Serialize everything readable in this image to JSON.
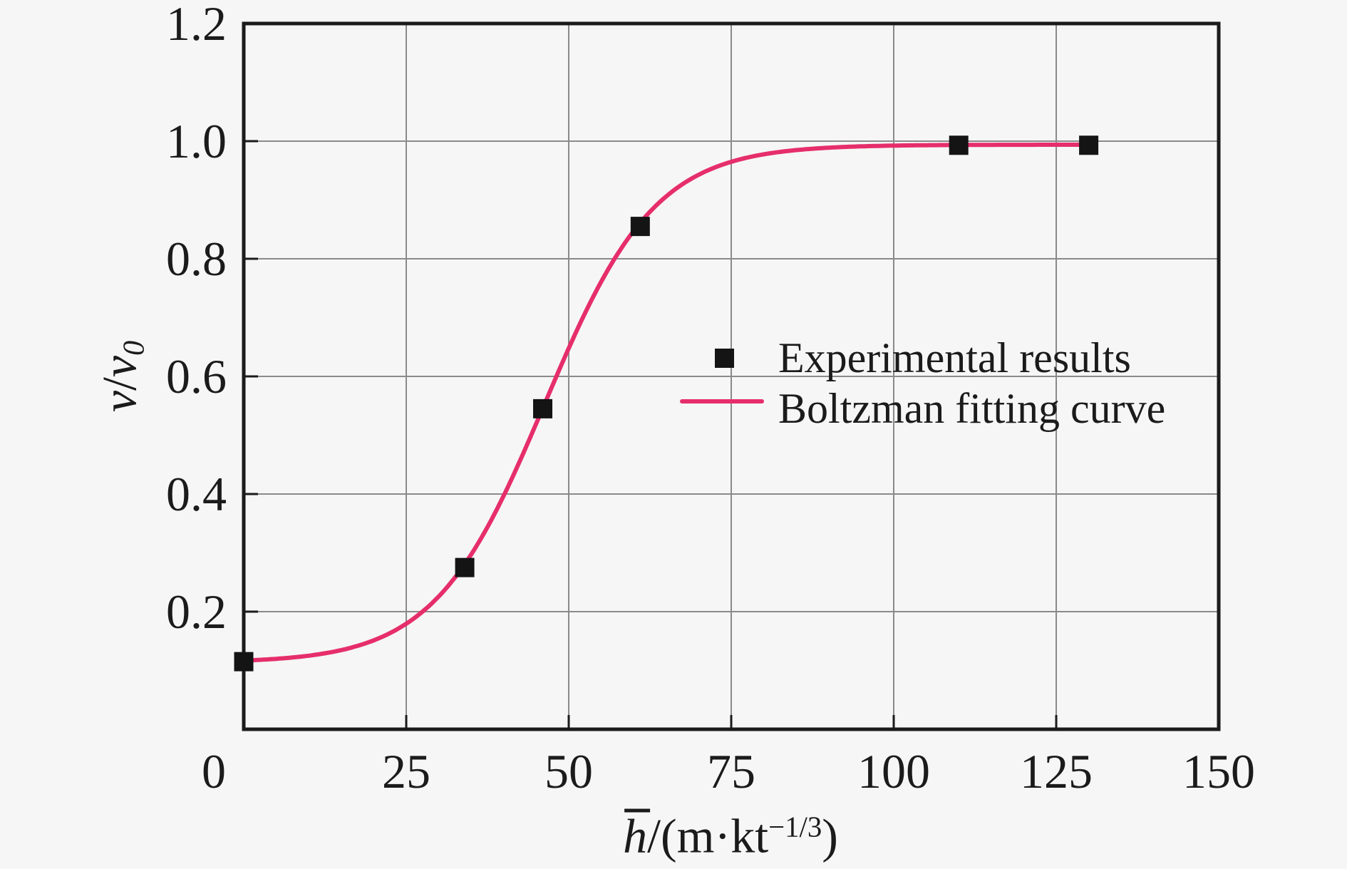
{
  "figure": {
    "background": "#f6f6f6",
    "frame_color": "#1b1b1b",
    "grid_color": "#8a8a8a",
    "text_color": "#1b1b1b",
    "curve_color": "#e62e6b",
    "marker_color": "#141414"
  },
  "chart_data": {
    "type": "scatter",
    "title": "",
    "xlabel": "h̄/(m·kt⁻¹/³)",
    "ylabel": "v/v₀",
    "xlim": [
      0,
      150
    ],
    "ylim": [
      0,
      1.2
    ],
    "x_ticks": [
      0,
      25,
      50,
      75,
      100,
      125,
      150
    ],
    "y_ticks": [
      0.2,
      0.4,
      0.6,
      0.8,
      1.0,
      1.2
    ],
    "grid": true,
    "legend_position": "center-right-inside",
    "series": [
      {
        "name": "Experimental results",
        "type": "scatter",
        "marker": "square",
        "color": "#141414",
        "points": [
          [
            0,
            0.115
          ],
          [
            34,
            0.275
          ],
          [
            46,
            0.545
          ],
          [
            61,
            0.855
          ],
          [
            110,
            0.993
          ],
          [
            130,
            0.993
          ]
        ]
      },
      {
        "name": "Boltzman fitting curve",
        "type": "line",
        "color": "#e62e6b",
        "fit_model": "Boltzmann",
        "fit_params": {
          "A1": 0.113,
          "A2": 0.994,
          "x0": 46.3,
          "dx": 8.5
        },
        "x_range": [
          0,
          130.6
        ]
      }
    ]
  },
  "axis": {
    "x_tick_labels": [
      "0",
      "25",
      "50",
      "75",
      "100",
      "125",
      "150"
    ],
    "y_tick_labels": [
      "0.2",
      "0.4",
      "0.6",
      "0.8",
      "1.0",
      "1.2"
    ],
    "xlabel_parts": {
      "variable": "h",
      "after_var": "/(m·kt",
      "superscript": "−1/3",
      "closing": ")"
    },
    "ylabel_parts": {
      "numerator": "v",
      "slash": "/",
      "denominator": "v",
      "subscript": "0"
    }
  },
  "legend": {
    "items": [
      {
        "label": "Experimental results",
        "marker": "black-square"
      },
      {
        "label": "Boltzman fitting curve",
        "marker": "pink-line"
      }
    ]
  }
}
